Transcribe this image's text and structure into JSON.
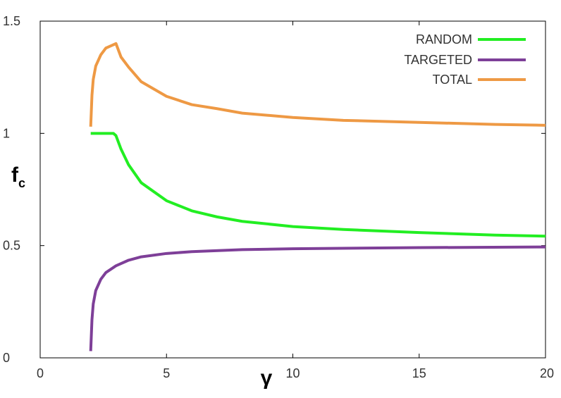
{
  "chart_data": {
    "type": "line",
    "xlabel": "γ",
    "ylabel": "f",
    "ylabel_subscript": "c",
    "xlim": [
      0,
      20
    ],
    "ylim": [
      0,
      1.5
    ],
    "xticks": [
      0,
      5,
      10,
      15,
      20
    ],
    "yticks": [
      0,
      0.5,
      1,
      1.5
    ],
    "xtick_labels": [
      "0",
      "5",
      "10",
      "15",
      "20"
    ],
    "ytick_labels": [
      "0",
      "0.5",
      "1",
      "1.5"
    ],
    "grid": false,
    "legend_position": "top-right",
    "series": [
      {
        "name": "RANDOM",
        "color": "#22ee22",
        "x": [
          2.0,
          2.5,
          2.9,
          3.0,
          3.2,
          3.5,
          4.0,
          5.0,
          6.0,
          7.0,
          8.0,
          10.0,
          12.0,
          15.0,
          18.0,
          20.0
        ],
        "y": [
          1.0,
          1.0,
          1.0,
          0.99,
          0.93,
          0.86,
          0.78,
          0.7,
          0.655,
          0.628,
          0.608,
          0.585,
          0.572,
          0.558,
          0.547,
          0.542
        ]
      },
      {
        "name": "TARGETED",
        "color": "#7e3f98",
        "x": [
          2.0,
          2.05,
          2.1,
          2.2,
          2.4,
          2.6,
          3.0,
          3.5,
          4.0,
          5.0,
          6.0,
          8.0,
          10.0,
          15.0,
          20.0
        ],
        "y": [
          0.03,
          0.17,
          0.24,
          0.3,
          0.35,
          0.38,
          0.41,
          0.435,
          0.45,
          0.465,
          0.473,
          0.482,
          0.486,
          0.491,
          0.494
        ]
      },
      {
        "name": "TOTAL",
        "color": "#ee9944",
        "x": [
          2.0,
          2.05,
          2.1,
          2.2,
          2.4,
          2.6,
          2.8,
          3.0,
          3.2,
          3.5,
          4.0,
          5.0,
          6.0,
          7.0,
          8.0,
          10.0,
          12.0,
          15.0,
          18.0,
          20.0
        ],
        "y": [
          1.03,
          1.17,
          1.24,
          1.3,
          1.35,
          1.38,
          1.39,
          1.4,
          1.34,
          1.295,
          1.23,
          1.165,
          1.128,
          1.11,
          1.09,
          1.071,
          1.058,
          1.049,
          1.04,
          1.036
        ]
      }
    ]
  }
}
